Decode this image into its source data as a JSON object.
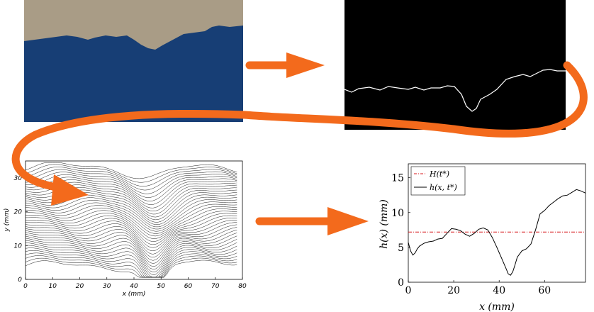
{
  "colors": {
    "arrow": "#F36A1C",
    "photo_background": "#A99C86",
    "photo_fluid": "#173E75",
    "edge_background": "#000000",
    "edge_line": "#FFFFFF",
    "mean_line": "#D7191C",
    "profile_line": "#000000"
  },
  "photo": {
    "description_icon": "fluid-photo",
    "surface_profile": [
      [
        0,
        58
      ],
      [
        15,
        56
      ],
      [
        30,
        54
      ],
      [
        45,
        52
      ],
      [
        60,
        50
      ],
      [
        75,
        52
      ],
      [
        90,
        56
      ],
      [
        100,
        53
      ],
      [
        115,
        50
      ],
      [
        130,
        52
      ],
      [
        145,
        50
      ],
      [
        155,
        56
      ],
      [
        165,
        63
      ],
      [
        175,
        68
      ],
      [
        185,
        70
      ],
      [
        195,
        64
      ],
      [
        210,
        56
      ],
      [
        225,
        48
      ],
      [
        240,
        46
      ],
      [
        255,
        44
      ],
      [
        265,
        38
      ],
      [
        275,
        36
      ],
      [
        290,
        38
      ],
      [
        309,
        36
      ]
    ]
  },
  "edge_image": {
    "description_icon": "edge-detection",
    "edge_curve": [
      [
        0,
        126
      ],
      [
        10,
        130
      ],
      [
        20,
        125
      ],
      [
        35,
        123
      ],
      [
        50,
        127
      ],
      [
        62,
        122
      ],
      [
        75,
        124
      ],
      [
        90,
        126
      ],
      [
        100,
        123
      ],
      [
        112,
        127
      ],
      [
        122,
        124
      ],
      [
        135,
        124
      ],
      [
        145,
        121
      ],
      [
        155,
        122
      ],
      [
        165,
        133
      ],
      [
        172,
        150
      ],
      [
        180,
        157
      ],
      [
        186,
        153
      ],
      [
        192,
        140
      ],
      [
        205,
        133
      ],
      [
        215,
        126
      ],
      [
        228,
        112
      ],
      [
        240,
        108
      ],
      [
        252,
        105
      ],
      [
        262,
        108
      ],
      [
        272,
        103
      ],
      [
        280,
        99
      ],
      [
        290,
        98
      ],
      [
        300,
        100
      ],
      [
        312,
        100
      ]
    ]
  },
  "stack_plot": {
    "ylabel": "y (mm)",
    "xlabel": "x (mm)",
    "xticks": [
      "0",
      "10",
      "20",
      "30",
      "40",
      "50",
      "60",
      "70",
      "80"
    ],
    "yticks": [
      "0",
      "10",
      "20",
      "30"
    ],
    "xlim": [
      0,
      80
    ],
    "ylim": [
      0,
      35
    ],
    "line_count": 40
  },
  "chart_data": {
    "type": "line",
    "xlabel": "x (mm)",
    "ylabel": "h(x) (mm)",
    "xlim": [
      0,
      78
    ],
    "ylim": [
      0,
      17
    ],
    "xticks": [
      "0",
      "20",
      "40",
      "60"
    ],
    "yticks": [
      "0",
      "5",
      "10",
      "15"
    ],
    "legend_position": "top-left",
    "series": [
      {
        "name": "H(t*)",
        "style": "dash-dot",
        "x": [
          0,
          78
        ],
        "y": [
          7.2,
          7.2
        ]
      },
      {
        "name": "h(x, t*)",
        "style": "solid",
        "x": [
          0,
          1,
          2,
          3,
          4,
          5,
          7,
          9,
          11,
          13,
          15,
          17,
          19,
          21,
          23,
          25,
          27,
          29,
          31,
          33,
          35,
          37,
          39,
          41,
          43,
          44,
          45,
          46,
          47,
          48,
          50,
          52,
          54,
          56,
          58,
          60,
          62,
          64,
          66,
          68,
          70,
          72,
          74,
          76,
          78
        ],
        "y": [
          5.7,
          4.5,
          3.9,
          4.2,
          4.8,
          5.2,
          5.6,
          5.8,
          5.9,
          6.2,
          6.3,
          7.0,
          7.7,
          7.6,
          7.4,
          6.9,
          6.6,
          7.0,
          7.6,
          7.8,
          7.5,
          6.4,
          5.0,
          3.5,
          2.0,
          1.2,
          1.0,
          1.5,
          2.5,
          3.6,
          4.5,
          4.8,
          5.5,
          7.5,
          9.8,
          10.3,
          11.0,
          11.5,
          12.0,
          12.4,
          12.5,
          12.9,
          13.3,
          13.1,
          12.8
        ]
      }
    ]
  }
}
